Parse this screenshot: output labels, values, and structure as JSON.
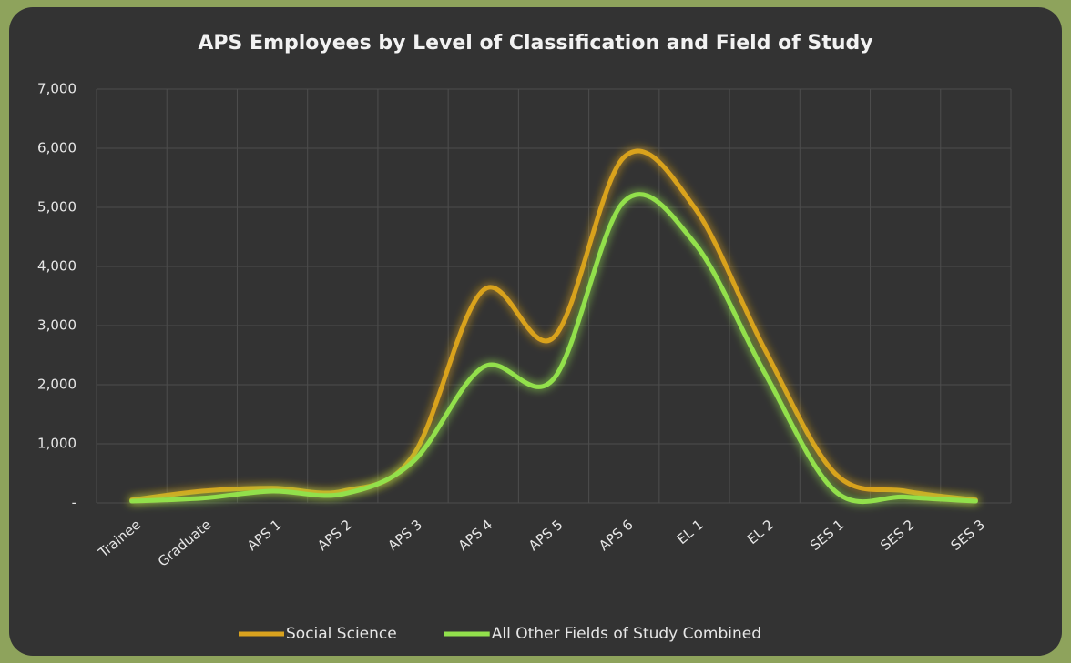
{
  "chart_data": {
    "type": "line",
    "title": "APS Employees by Level of Classification and Field of Study",
    "categories": [
      "Trainee",
      "Graduate",
      "APS 1",
      "APS 2",
      "APS 3",
      "APS 4",
      "APS 5",
      "APS 6",
      "EL 1",
      "EL 2",
      "SES 1",
      "SES 2",
      "SES 3"
    ],
    "series": [
      {
        "name": "Social Science",
        "color": "#d9a21e",
        "values": [
          50,
          200,
          250,
          200,
          800,
          3600,
          2800,
          5850,
          5000,
          2600,
          500,
          200,
          50
        ]
      },
      {
        "name": "All Other Fields of Study Combined",
        "color": "#92e04c",
        "values": [
          30,
          80,
          200,
          150,
          700,
          2300,
          2100,
          5100,
          4400,
          2200,
          200,
          100,
          30
        ]
      }
    ],
    "ylim": [
      0,
      7000
    ],
    "yticks": [
      {
        "value": 0,
        "label": "-"
      },
      {
        "value": 1000,
        "label": "1,000"
      },
      {
        "value": 2000,
        "label": "2,000"
      },
      {
        "value": 3000,
        "label": "3,000"
      },
      {
        "value": 4000,
        "label": "4,000"
      },
      {
        "value": 5000,
        "label": "5,000"
      },
      {
        "value": 6000,
        "label": "6,000"
      },
      {
        "value": 7000,
        "label": "7,000"
      }
    ],
    "grid": true,
    "smooth": true,
    "legend": "bottom"
  }
}
